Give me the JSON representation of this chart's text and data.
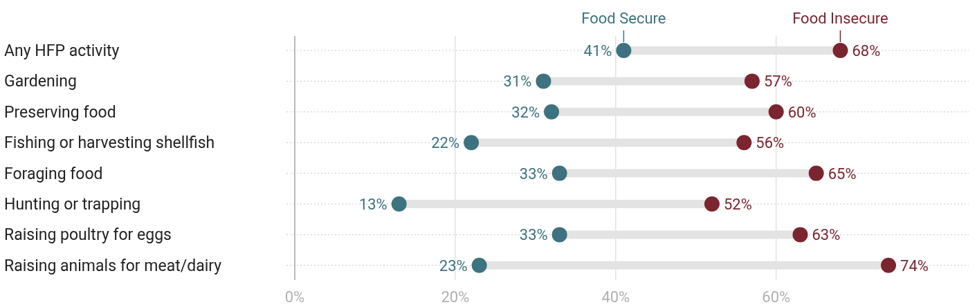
{
  "chart_data": {
    "type": "scatter",
    "orientation": "horizontal",
    "categories": [
      "Any HFP activity",
      "Gardening",
      "Preserving food",
      "Fishing or harvesting shellfish",
      "Foraging food",
      "Hunting or trapping",
      "Raising poultry for eggs",
      "Raising animals for meat/dairy"
    ],
    "series": [
      {
        "name": "Food Secure",
        "color": "#3d7280",
        "values": [
          41,
          31,
          32,
          22,
          33,
          13,
          33,
          23
        ],
        "value_labels": [
          "41%",
          "31%",
          "32%",
          "22%",
          "33%",
          "13%",
          "33%",
          "23%"
        ]
      },
      {
        "name": "Food Insecure",
        "color": "#7b2530",
        "values": [
          68,
          57,
          60,
          56,
          65,
          52,
          63,
          74
        ],
        "value_labels": [
          "68%",
          "57%",
          "60%",
          "56%",
          "65%",
          "52%",
          "63%",
          "74%"
        ]
      }
    ],
    "xlim": [
      0,
      84
    ],
    "xticks": [
      {
        "value": 0,
        "label": "0%"
      },
      {
        "value": 20,
        "label": "20%"
      },
      {
        "value": 40,
        "label": "40%"
      },
      {
        "value": 60,
        "label": "60%"
      }
    ],
    "grid": true,
    "marker": "circle",
    "legend": false
  }
}
